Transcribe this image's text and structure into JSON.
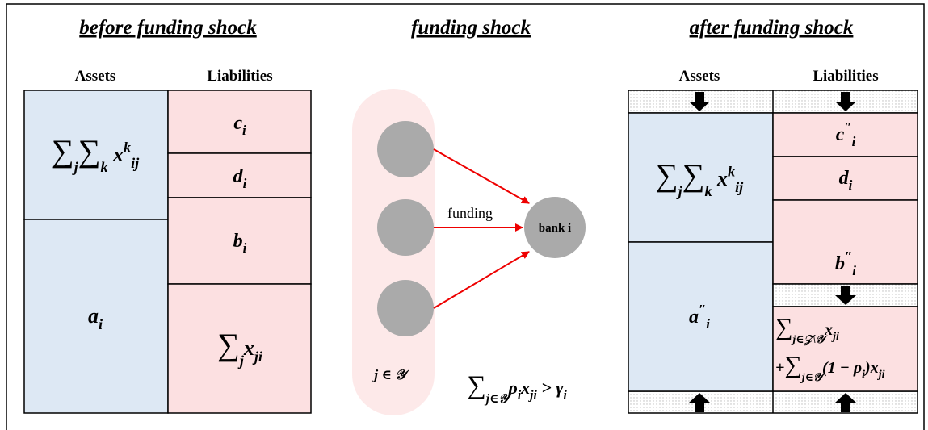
{
  "panels": {
    "before": {
      "title": "before funding shock",
      "assets_header": "Assets",
      "liabilities_header": "Liabilities",
      "assets": [
        [
          {
            "base": "∑",
            "sub": "j"
          },
          {
            "base": "∑",
            "sub": "k"
          },
          {
            "base": " x",
            "sup": "k",
            "sub": "ij"
          }
        ],
        [
          {
            "base": "a",
            "sub": "i"
          }
        ]
      ],
      "liabilities": [
        [
          {
            "base": "c",
            "sub": "i"
          }
        ],
        [
          {
            "base": "d",
            "sub": "i"
          }
        ],
        [
          {
            "base": "b",
            "sub": "i"
          }
        ],
        [
          {
            "base": "∑",
            "sub": "j"
          },
          {
            "base": "x",
            "sub": "ji"
          }
        ]
      ]
    },
    "shock": {
      "title": "funding shock",
      "edge_label": "funding",
      "target": "bank i",
      "group": [
        {
          "base": "j ∈ 𝒴"
        }
      ],
      "condition": [
        {
          "base": "∑",
          "sub": "j∈𝒴"
        },
        {
          "base": "ρ",
          "sub": "i"
        },
        {
          "base": "x",
          "sub": "ji"
        },
        {
          "base": " > γ",
          "sub": "i"
        }
      ]
    },
    "after": {
      "title": "after funding shock",
      "assets_header": "Assets",
      "liabilities_header": "Liabilities",
      "assets": [
        [
          {
            "base": "∑",
            "sub": "j"
          },
          {
            "base": "∑",
            "sub": "k"
          },
          {
            "base": " x",
            "sup": "k",
            "sub": "ij"
          }
        ],
        [
          {
            "base": "a",
            "sup": "″",
            "sub": "i"
          }
        ]
      ],
      "liabilities": [
        [
          {
            "base": "c",
            "sup": "″",
            "sub": "i"
          }
        ],
        [
          {
            "base": "d",
            "sub": "i"
          }
        ],
        [
          {
            "base": "b",
            "sup": "″",
            "sub": "i"
          }
        ],
        {
          "lines": [
            [
              {
                "base": "∑",
                "sub": "j∈𝒵\\𝒴"
              },
              {
                "base": "x",
                "sub": "ji"
              }
            ],
            [
              {
                "base": "+"
              },
              {
                "base": "∑",
                "sub": "j∈𝒴"
              },
              {
                "base": "(1 − "
              },
              {
                "base": "ρ",
                "sub": "i"
              },
              {
                "base": ")"
              },
              {
                "base": "x",
                "sub": "ji"
              }
            ]
          ]
        }
      ]
    }
  }
}
